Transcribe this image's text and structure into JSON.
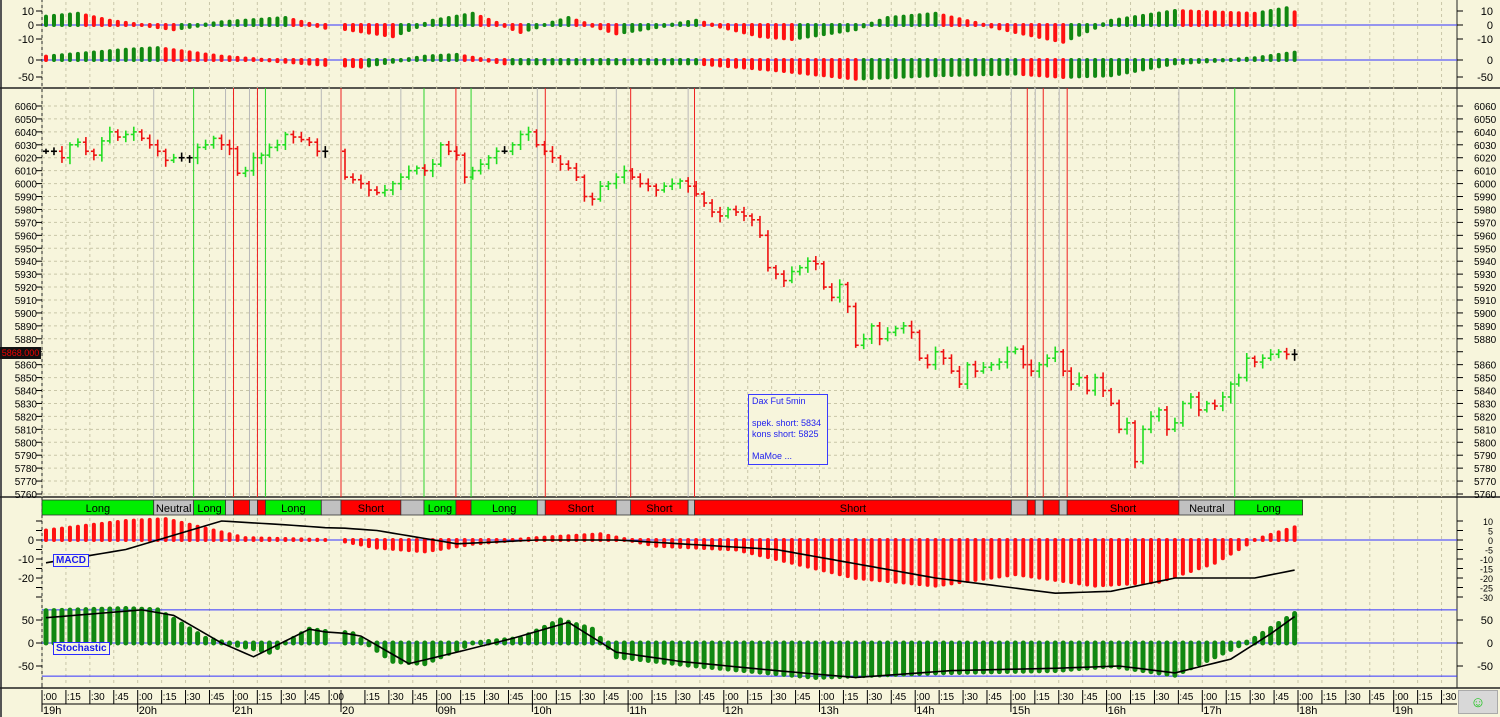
{
  "instrument": {
    "current_price": "5868.000"
  },
  "info_box": {
    "line1": "Dax Fut 5min",
    "line2": "spek. short: 5834",
    "line3": "kons short: 5825",
    "line4": "MaMoe ..."
  },
  "indicators": {
    "macd_label": "MACD",
    "stochastic_label": "Stochastic"
  },
  "colors": {
    "background": "#f7f5dc",
    "up": "#22dd22",
    "down": "#ee1111",
    "neutral": "#bdbdbd",
    "hist_green": "#118811",
    "hist_red": "#ff1111",
    "ref_line": "#3333ff"
  },
  "chart_data": {
    "type": "ohlc",
    "title": "Dax Fut 5min",
    "bar_interval_minutes": 5,
    "price_axis": {
      "ylim": [
        5760,
        6060
      ],
      "step": 10
    },
    "closes": [
      6025,
      6025,
      6020,
      6030,
      6032,
      6025,
      6022,
      6033,
      6040,
      6036,
      6038,
      6040,
      6035,
      6030,
      6025,
      6018,
      6020,
      6020,
      6020,
      6028,
      6030,
      6035,
      6030,
      6027,
      6008,
      6010,
      6020,
      6022,
      6028,
      6030,
      6038,
      6036,
      6034,
      6032,
      6025,
      6025,
      6005,
      6003,
      6000,
      5995,
      5993,
      5995,
      6000,
      6005,
      6010,
      6012,
      6010,
      6015,
      6030,
      6025,
      6022,
      6005,
      6010,
      6015,
      6020,
      6025,
      6025,
      6030,
      6038,
      6040,
      6030,
      6025,
      6020,
      6015,
      6012,
      6005,
      5990,
      5988,
      5998,
      6000,
      6005,
      6010,
      6005,
      6000,
      5998,
      5995,
      5998,
      6000,
      6002,
      5998,
      5992,
      5985,
      5978,
      5975,
      5980,
      5978,
      5975,
      5972,
      5960,
      5935,
      5930,
      5925,
      5932,
      5935,
      5940,
      5938,
      5920,
      5912,
      5922,
      5905,
      5875,
      5880,
      5890,
      5880,
      5885,
      5888,
      5890,
      5885,
      5865,
      5860,
      5870,
      5865,
      5855,
      5845,
      5860,
      5855,
      5858,
      5860,
      5862,
      5870,
      5872,
      5860,
      5855,
      5860,
      5865,
      5870,
      5855,
      5845,
      5850,
      5840,
      5850,
      5840,
      5830,
      5810,
      5815,
      5785,
      5810,
      5820,
      5825,
      5810,
      5815,
      5830,
      5835,
      5825,
      5830,
      5828,
      5835,
      5845,
      5850,
      5865,
      5862,
      5865,
      5868,
      5870,
      5868,
      5868
    ],
    "signals": [
      {
        "label": "Long",
        "kind": "long",
        "from": 0,
        "to": 14
      },
      {
        "label": "Neutral",
        "kind": "neutral",
        "from": 14,
        "to": 19
      },
      {
        "label": "Long",
        "kind": "long",
        "from": 19,
        "to": 23
      },
      {
        "label": "",
        "kind": "neutral",
        "from": 23,
        "to": 24
      },
      {
        "label": "",
        "kind": "short",
        "from": 24,
        "to": 26
      },
      {
        "label": "",
        "kind": "neutral",
        "from": 26,
        "to": 27
      },
      {
        "label": "",
        "kind": "short",
        "from": 27,
        "to": 28
      },
      {
        "label": "Long",
        "kind": "long",
        "from": 28,
        "to": 35
      },
      {
        "label": "",
        "kind": "neutral",
        "from": 35,
        "to": 36
      },
      {
        "label": "Short",
        "kind": "short",
        "from": 36,
        "to": 43.5
      },
      {
        "label": "",
        "kind": "neutral",
        "from": 43.5,
        "to": 46.4
      },
      {
        "label": "Long",
        "kind": "long",
        "from": 46.4,
        "to": 50.4
      },
      {
        "label": "",
        "kind": "short",
        "from": 50.4,
        "to": 52.3
      },
      {
        "label": "Long",
        "kind": "long",
        "from": 52.3,
        "to": 60.6
      },
      {
        "label": "",
        "kind": "neutral",
        "from": 60.6,
        "to": 61.6
      },
      {
        "label": "Short",
        "kind": "short",
        "from": 61.6,
        "to": 70.5
      },
      {
        "label": "",
        "kind": "neutral",
        "from": 70.5,
        "to": 72.3
      },
      {
        "label": "Short",
        "kind": "short",
        "from": 72.3,
        "to": 79.5
      },
      {
        "label": "",
        "kind": "neutral",
        "from": 79.5,
        "to": 80.3
      },
      {
        "label": "Short",
        "kind": "short",
        "from": 80.3,
        "to": 120
      },
      {
        "label": "",
        "kind": "neutral",
        "from": 120,
        "to": 122
      },
      {
        "label": "",
        "kind": "short",
        "from": 122,
        "to": 123
      },
      {
        "label": "",
        "kind": "neutral",
        "from": 123,
        "to": 124
      },
      {
        "label": "",
        "kind": "short",
        "from": 124,
        "to": 126
      },
      {
        "label": "",
        "kind": "neutral",
        "from": 126,
        "to": 127
      },
      {
        "label": "Short",
        "kind": "short",
        "from": 127,
        "to": 141
      },
      {
        "label": "Neutral",
        "kind": "neutral",
        "from": 141,
        "to": 148
      },
      {
        "label": "Long",
        "kind": "long",
        "from": 148,
        "to": 156.5
      }
    ],
    "oscillator1": {
      "ylim": [
        -15,
        15
      ],
      "ticks": [
        "10",
        "0",
        "-10"
      ],
      "tick_values": [
        10,
        0,
        -10
      ],
      "points": [
        [
          0,
          6
        ],
        [
          4,
          8
        ],
        [
          8,
          3
        ],
        [
          16,
          -3
        ],
        [
          22,
          2
        ],
        [
          30,
          5
        ],
        [
          35,
          -2
        ],
        [
          42,
          -8
        ],
        [
          47,
          3
        ],
        [
          52,
          8
        ],
        [
          58,
          -5
        ],
        [
          64,
          5
        ],
        [
          70,
          -6
        ],
        [
          80,
          3
        ],
        [
          88,
          -8
        ],
        [
          92,
          -10
        ],
        [
          100,
          -3
        ],
        [
          104,
          5
        ],
        [
          110,
          8
        ],
        [
          120,
          -5
        ],
        [
          126,
          -12
        ],
        [
          132,
          3
        ],
        [
          140,
          10
        ],
        [
          150,
          8
        ],
        [
          154,
          12
        ],
        [
          156,
          6
        ]
      ]
    },
    "oscillator2": {
      "ticks": [
        "0",
        "-50"
      ],
      "tick_values": [
        0,
        -50
      ],
      "points": [
        [
          0,
          10
        ],
        [
          10,
          30
        ],
        [
          14,
          35
        ],
        [
          22,
          10
        ],
        [
          30,
          -5
        ],
        [
          38,
          -20
        ],
        [
          46,
          10
        ],
        [
          50,
          15
        ],
        [
          56,
          -10
        ],
        [
          66,
          -10
        ],
        [
          80,
          -10
        ],
        [
          90,
          -30
        ],
        [
          100,
          -55
        ],
        [
          110,
          -45
        ],
        [
          120,
          -40
        ],
        [
          126,
          -50
        ],
        [
          132,
          -45
        ],
        [
          140,
          -10
        ],
        [
          150,
          5
        ],
        [
          156,
          25
        ]
      ]
    },
    "macd": {
      "left_ticks": [
        "0",
        "-10",
        "-20"
      ],
      "left_values": [
        0,
        -10,
        -20
      ],
      "right_ticks": [
        "10",
        "5",
        "0",
        "-5",
        "-10",
        "-15",
        "-20",
        "-25",
        "-30"
      ],
      "right_values": [
        10,
        5,
        0,
        -5,
        -10,
        -15,
        -20,
        -25,
        -30
      ],
      "histogram": [
        [
          0,
          5
        ],
        [
          10,
          10
        ],
        [
          15,
          11
        ],
        [
          20,
          6
        ],
        [
          25,
          1
        ],
        [
          35,
          0
        ],
        [
          40,
          -4
        ],
        [
          46,
          -6
        ],
        [
          52,
          -2
        ],
        [
          60,
          1
        ],
        [
          68,
          3
        ],
        [
          75,
          -3
        ],
        [
          85,
          -5
        ],
        [
          100,
          -20
        ],
        [
          110,
          -24
        ],
        [
          120,
          -18
        ],
        [
          130,
          -24
        ],
        [
          138,
          -22
        ],
        [
          145,
          -12
        ],
        [
          150,
          0
        ],
        [
          156,
          8
        ]
      ],
      "line": [
        [
          0,
          -12
        ],
        [
          10,
          -5
        ],
        [
          22,
          10
        ],
        [
          30,
          8
        ],
        [
          40,
          5
        ],
        [
          50,
          -2
        ],
        [
          60,
          0
        ],
        [
          70,
          0
        ],
        [
          90,
          -5
        ],
        [
          110,
          -20
        ],
        [
          125,
          -28
        ],
        [
          132,
          -27
        ],
        [
          140,
          -20
        ],
        [
          150,
          -20
        ],
        [
          156,
          -15
        ]
      ]
    },
    "stochastic": {
      "ticks": [
        "50",
        "0",
        "-50"
      ],
      "tick_values": [
        50,
        0,
        -50
      ],
      "bands": [
        72,
        -72
      ],
      "histogram": [
        [
          0,
          70
        ],
        [
          10,
          75
        ],
        [
          14,
          72
        ],
        [
          20,
          10
        ],
        [
          24,
          -5
        ],
        [
          28,
          -20
        ],
        [
          33,
          30
        ],
        [
          37,
          20
        ],
        [
          42,
          -40
        ],
        [
          46,
          -45
        ],
        [
          52,
          0
        ],
        [
          58,
          10
        ],
        [
          63,
          50
        ],
        [
          67,
          30
        ],
        [
          70,
          -30
        ],
        [
          80,
          -50
        ],
        [
          95,
          -75
        ],
        [
          110,
          -65
        ],
        [
          125,
          -60
        ],
        [
          132,
          -50
        ],
        [
          140,
          -70
        ],
        [
          150,
          10
        ],
        [
          156,
          75
        ]
      ],
      "line": [
        [
          0,
          55
        ],
        [
          12,
          72
        ],
        [
          16,
          60
        ],
        [
          22,
          0
        ],
        [
          26,
          -30
        ],
        [
          33,
          30
        ],
        [
          38,
          15
        ],
        [
          44,
          -45
        ],
        [
          50,
          -20
        ],
        [
          57,
          10
        ],
        [
          64,
          45
        ],
        [
          70,
          -20
        ],
        [
          78,
          -40
        ],
        [
          90,
          -60
        ],
        [
          100,
          -75
        ],
        [
          112,
          -60
        ],
        [
          125,
          -55
        ],
        [
          133,
          -50
        ],
        [
          140,
          -65
        ],
        [
          147,
          -35
        ],
        [
          152,
          20
        ],
        [
          156,
          70
        ]
      ]
    },
    "time_axis": {
      "minute_ticks_day1": [
        ":00",
        ":15",
        ":30",
        ":45",
        ":00",
        ":15",
        ":30",
        ":45",
        ":00",
        ":15",
        ":30",
        ":45",
        ":00"
      ],
      "minute_ticks_day2": [
        "",
        ":15",
        ":30",
        ":45",
        ":00",
        ":15",
        ":30",
        ":45",
        ":00",
        ":15",
        ":30",
        ":45",
        ":00",
        ":15",
        ":30",
        ":45",
        ":00",
        ":15",
        ":30",
        ":45",
        ":00",
        ":15",
        ":30",
        ":45",
        ":00",
        ":15",
        ":30",
        ":45",
        ":00",
        ":15",
        ":30",
        ":45",
        ":00",
        ":15",
        ":30",
        ":45",
        ":00",
        ":15",
        ":30",
        ":45",
        ":00",
        ":15",
        ":30",
        ":45",
        ":00",
        ":15",
        ":30"
      ],
      "hour_labels_day1": [
        "19h",
        "20h",
        "21h"
      ],
      "hour_labels_day2": [
        "20",
        "09h",
        "10h",
        "11h",
        "12h",
        "13h",
        "14h",
        "15h",
        "16h",
        "17h",
        "18h",
        "19h"
      ]
    }
  }
}
